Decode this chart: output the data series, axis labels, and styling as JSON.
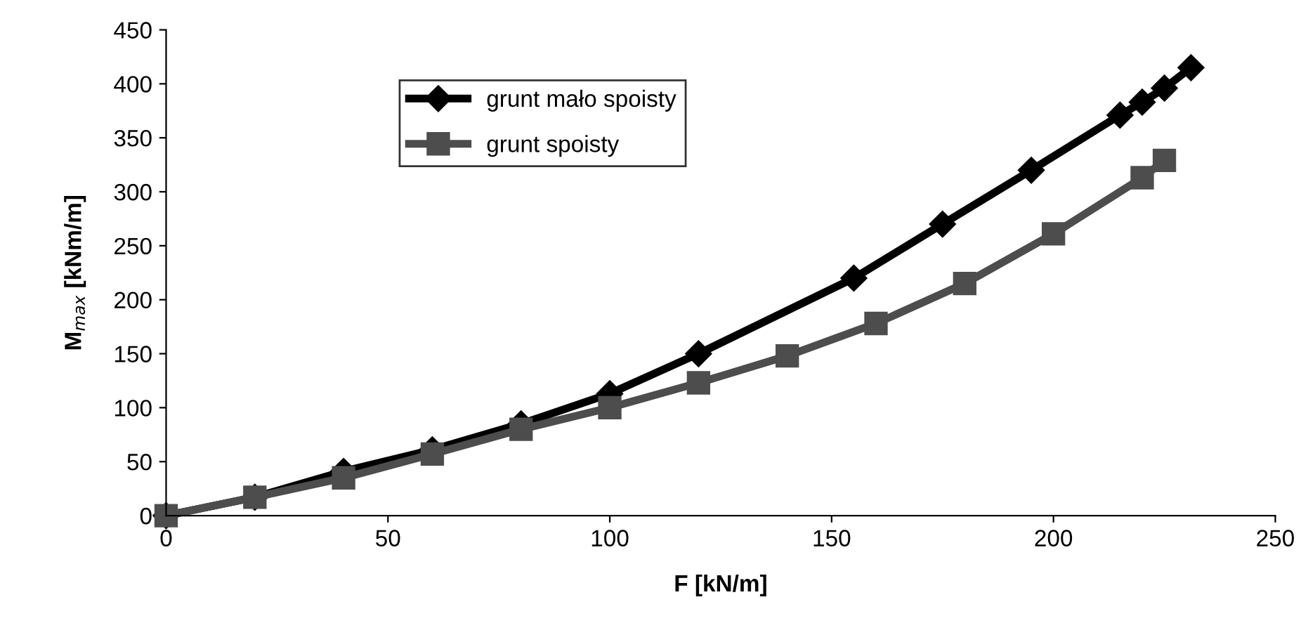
{
  "chart_data": {
    "type": "line",
    "xlabel": "F [kN/m]",
    "ylabel": "M$_{max}$ [kNm/m]",
    "xlim": [
      0,
      250
    ],
    "xticks": [
      0,
      50,
      100,
      150,
      200,
      250
    ],
    "ylim": [
      0,
      450
    ],
    "yticks": [
      0,
      50,
      100,
      150,
      200,
      250,
      300,
      350,
      400,
      450
    ],
    "grid": false,
    "legend": "top left",
    "line_style": "solid",
    "series": [
      {
        "name": "grunt mało spoisty",
        "color": "#000000",
        "marker": "diamond",
        "x": [
          0,
          20,
          40,
          60,
          80,
          100,
          120,
          155,
          175,
          195,
          215,
          220,
          225,
          231
        ],
        "values": [
          0,
          17,
          41,
          61,
          85,
          113,
          150,
          220,
          270,
          320,
          371,
          383,
          396,
          415
        ]
      },
      {
        "name": "grunt spoisty",
        "color": "#4d4d4d",
        "marker": "square",
        "x": [
          0,
          20,
          40,
          60,
          80,
          100,
          120,
          140,
          160,
          180,
          200,
          220,
          225
        ],
        "values": [
          0,
          17,
          35,
          57,
          80,
          100,
          123,
          148,
          178,
          215,
          261,
          313,
          329
        ]
      }
    ]
  }
}
